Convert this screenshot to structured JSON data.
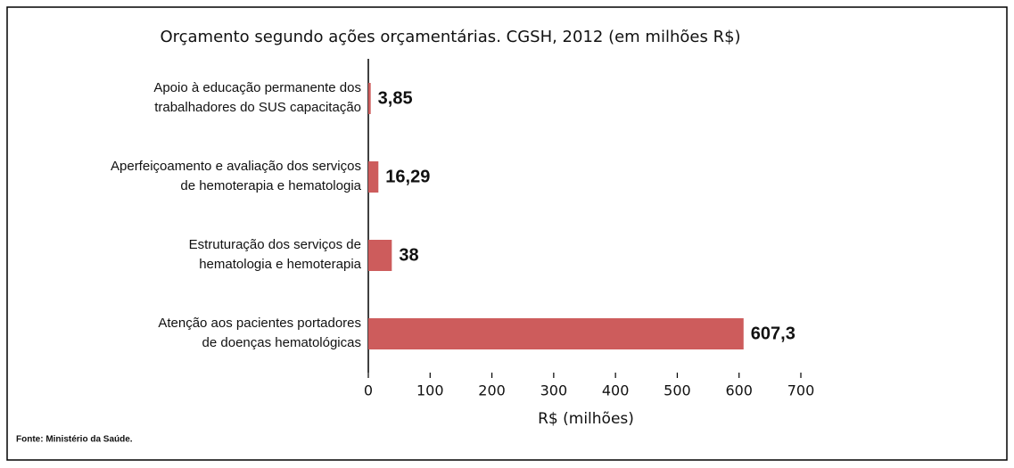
{
  "chart_data": {
    "type": "barh",
    "title": "Orçamento segundo ações orçamentárias. CGSH, 2012 (em milhões R$)",
    "categories": [
      [
        "Apoio à educação permanente dos",
        "trabalhadores do SUS capacitação"
      ],
      [
        "Aperfeiçoamento e avaliação dos serviços",
        "de hemoterapia e hematologia"
      ],
      [
        "Estruturação dos serviços de",
        "hematologia e hemoterapia"
      ],
      [
        "Atenção aos pacientes portadores",
        "de doenças hematológicas"
      ]
    ],
    "values": [
      3.85,
      16.29,
      38,
      607.3
    ],
    "value_labels": [
      "3,85",
      "16,29",
      "38",
      "607,3"
    ],
    "color": "#cd5c5c",
    "xlim": [
      0,
      700
    ],
    "xticks": [
      0,
      100,
      200,
      300,
      400,
      500,
      600,
      700
    ],
    "xlabel": "R$ (milhões)",
    "source": "Fonte: Ministério da Saúde."
  }
}
